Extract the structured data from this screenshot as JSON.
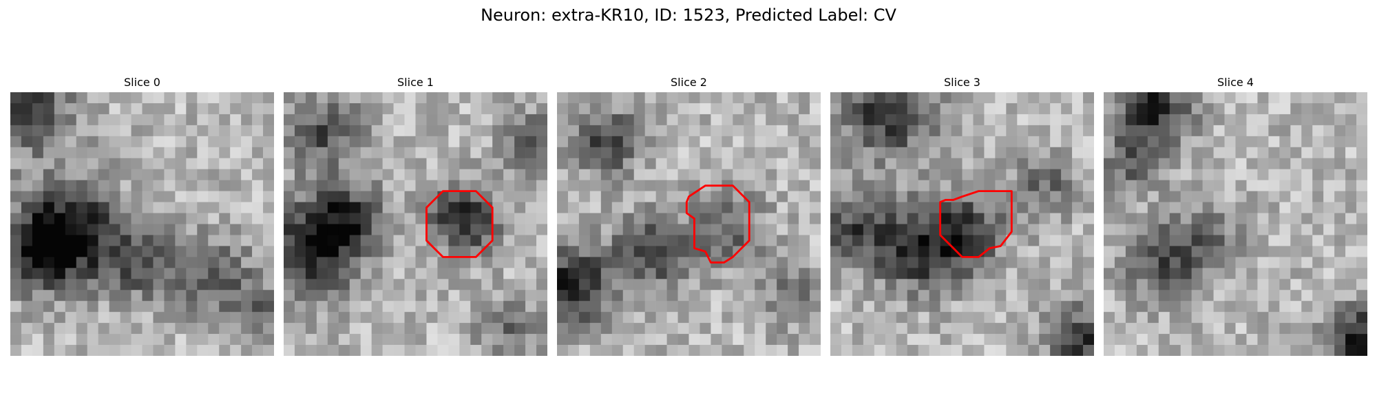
{
  "figure": {
    "title": "Neuron: extra-KR10, ID: 1523, Predicted Label: CV"
  },
  "panels": [
    {
      "title": "Slice 0",
      "contour": []
    },
    {
      "title": "Slice 1",
      "contour": [
        [
          14.5,
          9
        ],
        [
          17.5,
          9
        ],
        [
          19,
          10.5
        ],
        [
          19,
          13.5
        ],
        [
          17.5,
          15
        ],
        [
          14.5,
          15
        ],
        [
          13,
          13.5
        ],
        [
          13,
          10.5
        ]
      ]
    },
    {
      "title": "Slice 2",
      "contour": [
        [
          13.5,
          8.5
        ],
        [
          16,
          8.5
        ],
        [
          17.5,
          10
        ],
        [
          17.5,
          13.5
        ],
        [
          16.5,
          14.5
        ],
        [
          16,
          15
        ],
        [
          15.2,
          15.5
        ],
        [
          14,
          15.5
        ],
        [
          13.5,
          14.5
        ],
        [
          12.5,
          14.2
        ],
        [
          12.5,
          11.5
        ],
        [
          11.8,
          11
        ],
        [
          11.8,
          10
        ],
        [
          12,
          9.5
        ]
      ]
    },
    {
      "title": "Slice 3",
      "contour": [
        [
          13.5,
          9
        ],
        [
          16.5,
          9
        ],
        [
          16.5,
          12.7
        ],
        [
          15.5,
          14
        ],
        [
          14.5,
          14.2
        ],
        [
          13.5,
          15
        ],
        [
          12,
          15
        ],
        [
          11,
          14
        ],
        [
          10,
          13
        ],
        [
          10,
          10
        ],
        [
          10.5,
          9.8
        ],
        [
          11.2,
          9.8
        ],
        [
          12,
          9.5
        ]
      ]
    },
    {
      "title": "Slice 4",
      "contour": []
    }
  ],
  "colors": {
    "contour": "#ff0000",
    "background": "#ffffff"
  }
}
